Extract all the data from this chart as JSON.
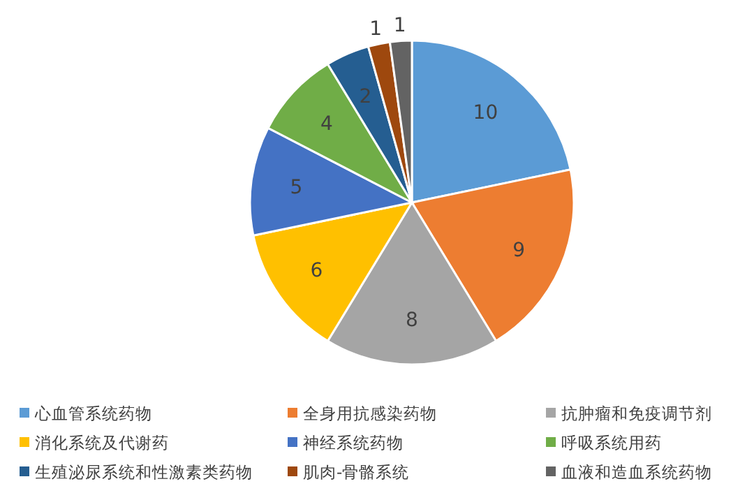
{
  "chart_data": {
    "type": "pie",
    "categories": [
      "心血管系统药物",
      "全身用抗感染药物",
      "抗肿瘤和免疫调节剂",
      "消化系统及代谢药",
      "神经系统药物",
      "呼吸系统用药",
      "生殖泌尿系统和性激素类药物",
      "肌肉-骨骼系统",
      "血液和造血系统药物"
    ],
    "values": [
      10,
      9,
      8,
      6,
      5,
      4,
      2,
      1,
      1
    ],
    "colors": [
      "#5b9bd5",
      "#ed7d31",
      "#a5a5a5",
      "#ffc000",
      "#4472c4",
      "#70ad47",
      "#255e91",
      "#9e480e",
      "#636363"
    ],
    "data_labels": true,
    "legend": "bottom"
  }
}
